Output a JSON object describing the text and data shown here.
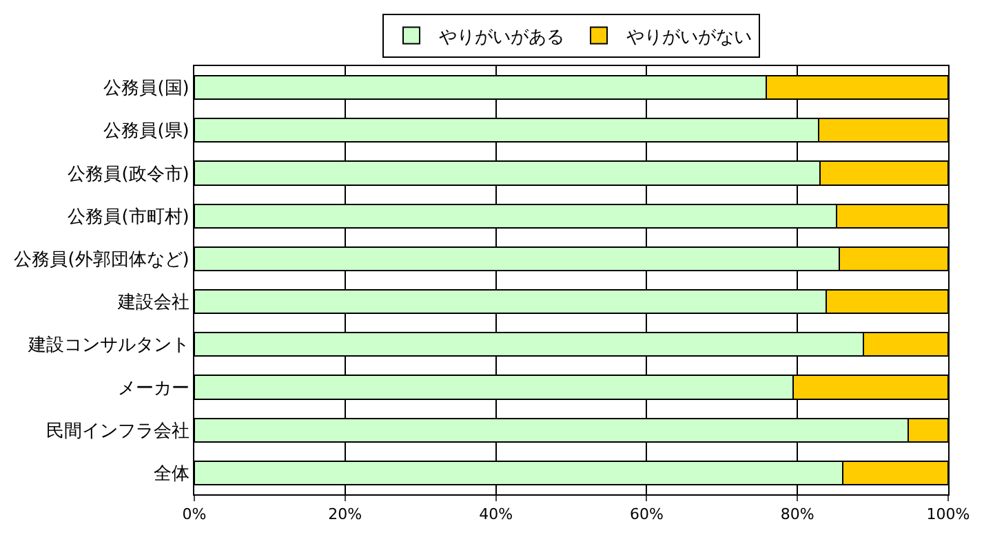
{
  "chart_data": {
    "type": "bar",
    "orientation": "horizontal",
    "stacked": true,
    "categories": [
      "公務員(国)",
      "公務員(県)",
      "公務員(政令市)",
      "公務員(市町村)",
      "公務員(外郭団体など)",
      "建設会社",
      "建設コンサルタント",
      "メーカー",
      "民間インフラ会社",
      "全体"
    ],
    "series": [
      {
        "name": "やりがいがある",
        "color": "#ccffcc",
        "values": [
          75.9,
          82.8,
          83.0,
          85.2,
          85.6,
          83.8,
          88.8,
          79.4,
          94.7,
          86.0
        ]
      },
      {
        "name": "やりがいがない",
        "color": "#ffcc00",
        "values": [
          24.1,
          17.2,
          17.0,
          14.8,
          14.4,
          16.2,
          11.2,
          20.6,
          5.3,
          14.0
        ]
      }
    ],
    "xlim": [
      0,
      100
    ],
    "xticks": [
      {
        "value": 0,
        "label": "0%"
      },
      {
        "value": 20,
        "label": "20%"
      },
      {
        "value": 40,
        "label": "40%"
      },
      {
        "value": 60,
        "label": "60%"
      },
      {
        "value": 80,
        "label": "80%"
      },
      {
        "value": 100,
        "label": "100%"
      }
    ],
    "grid": "x",
    "legend": "top"
  }
}
